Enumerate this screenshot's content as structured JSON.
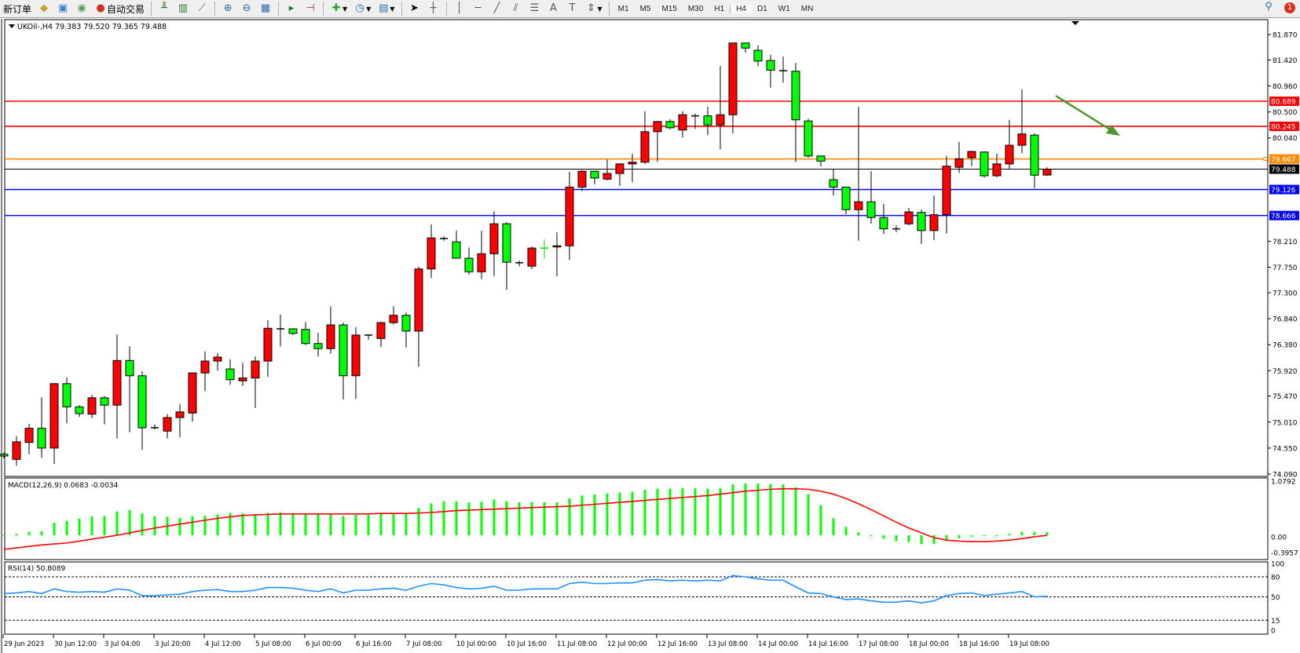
{
  "toolbar": {
    "new_order": "新订单",
    "auto_trading": "自动交易",
    "timeframes": [
      "M1",
      "M5",
      "M15",
      "M30",
      "H1",
      "H4",
      "D1",
      "W1",
      "MN"
    ],
    "active_timeframe": "H4",
    "notification_count": "1"
  },
  "chart": {
    "header": "UKOil-,H4  79.383 79.520 79.365 79.488",
    "symbol": "UKOil-",
    "timeframe": "H4",
    "up_color": "#ff0000",
    "down_color": "#00ff00",
    "price_ticks": [
      "81.870",
      "81.420",
      "80.960",
      "80.500",
      "80.040",
      "78.210",
      "77.750",
      "77.300",
      "76.840",
      "76.380",
      "75.920",
      "75.470",
      "75.010",
      "74.550",
      "74.090"
    ],
    "hlines": [
      {
        "price": 80.689,
        "label": "80.689",
        "color": "#ff0000"
      },
      {
        "price": 80.245,
        "label": "80.245",
        "color": "#ff0000"
      },
      {
        "price": 79.667,
        "label": "79.667",
        "color": "#ff8c00"
      },
      {
        "price": 79.488,
        "label": "79.488",
        "color": "#000000"
      },
      {
        "price": 79.126,
        "label": "79.126",
        "color": "#0000ff"
      },
      {
        "price": 78.666,
        "label": "78.666",
        "color": "#0000ff"
      }
    ],
    "arrow_color": "#4a9a2a",
    "time_labels": [
      {
        "i": 0,
        "t": "29 Jun 2023"
      },
      {
        "i": 4,
        "t": "30 Jun 12:00"
      },
      {
        "i": 8,
        "t": "3 Jul 04:00"
      },
      {
        "i": 12,
        "t": "3 Jul 20:00"
      },
      {
        "i": 16,
        "t": "4 Jul 12:00"
      },
      {
        "i": 20,
        "t": "5 Jul 08:00"
      },
      {
        "i": 24,
        "t": "6 Jul 00:00"
      },
      {
        "i": 28,
        "t": "6 Jul 16:00"
      },
      {
        "i": 32,
        "t": "7 Jul 08:00"
      },
      {
        "i": 36,
        "t": "10 Jul 00:00"
      },
      {
        "i": 40,
        "t": "10 Jul 16:00"
      },
      {
        "i": 44,
        "t": "11 Jul 08:00"
      },
      {
        "i": 48,
        "t": "12 Jul 00:00"
      },
      {
        "i": 52,
        "t": "12 Jul 16:00"
      },
      {
        "i": 56,
        "t": "13 Jul 08:00"
      },
      {
        "i": 60,
        "t": "14 Jul 00:00"
      },
      {
        "i": 64,
        "t": "14 Jul 16:00"
      },
      {
        "i": 68,
        "t": "17 Jul 08:00"
      },
      {
        "i": 72,
        "t": "18 Jul 00:00"
      },
      {
        "i": 76,
        "t": "18 Jul 16:00"
      },
      {
        "i": 80,
        "t": "19 Jul 08:00"
      }
    ]
  },
  "chart_data": {
    "type": "candlestick",
    "ylim": [
      74.09,
      81.87
    ],
    "ohlc": [
      [
        74.44,
        74.47,
        74.37,
        74.41
      ],
      [
        74.35,
        74.76,
        74.24,
        74.66
      ],
      [
        74.65,
        74.98,
        74.44,
        74.9
      ],
      [
        74.9,
        75.45,
        74.38,
        74.55
      ],
      [
        74.55,
        75.7,
        74.27,
        75.69
      ],
      [
        75.69,
        75.8,
        74.99,
        75.28
      ],
      [
        75.28,
        75.31,
        75.1,
        75.16
      ],
      [
        75.15,
        75.49,
        75.08,
        75.44
      ],
      [
        75.44,
        75.47,
        74.97,
        75.31
      ],
      [
        75.31,
        76.56,
        74.72,
        76.1
      ],
      [
        76.1,
        76.35,
        74.83,
        75.83
      ],
      [
        75.83,
        75.91,
        74.52,
        74.91
      ],
      [
        74.91,
        74.97,
        74.88,
        74.91
      ],
      [
        74.85,
        75.15,
        74.72,
        75.09
      ],
      [
        75.09,
        75.33,
        74.74,
        75.19
      ],
      [
        75.17,
        75.88,
        75.02,
        75.88
      ],
      [
        75.88,
        76.26,
        75.56,
        76.09
      ],
      [
        76.09,
        76.23,
        75.92,
        76.16
      ],
      [
        75.95,
        76.12,
        75.67,
        75.76
      ],
      [
        75.74,
        76.06,
        75.65,
        75.79
      ],
      [
        75.79,
        76.17,
        75.26,
        76.09
      ],
      [
        76.09,
        76.81,
        75.81,
        76.67
      ],
      [
        76.66,
        76.91,
        76.35,
        76.66
      ],
      [
        76.66,
        76.67,
        76.55,
        76.58
      ],
      [
        76.65,
        76.78,
        76.37,
        76.4
      ],
      [
        76.4,
        76.59,
        76.17,
        76.31
      ],
      [
        76.31,
        77.06,
        76.22,
        76.73
      ],
      [
        76.73,
        76.77,
        75.41,
        75.83
      ],
      [
        75.83,
        76.69,
        75.42,
        76.55
      ],
      [
        76.55,
        76.56,
        76.47,
        76.55
      ],
      [
        76.49,
        76.79,
        76.34,
        76.77
      ],
      [
        76.77,
        77.06,
        76.74,
        76.9
      ],
      [
        76.9,
        76.95,
        76.33,
        76.62
      ],
      [
        76.62,
        77.76,
        75.99,
        77.72
      ],
      [
        77.72,
        78.51,
        77.56,
        78.27
      ],
      [
        78.26,
        78.3,
        78.22,
        78.26
      ],
      [
        78.2,
        78.4,
        77.91,
        77.91
      ],
      [
        77.91,
        78.1,
        77.62,
        77.67
      ],
      [
        77.67,
        78.4,
        77.54,
        77.99
      ],
      [
        77.99,
        78.74,
        77.59,
        78.52
      ],
      [
        78.52,
        78.55,
        77.35,
        77.84
      ],
      [
        77.83,
        77.87,
        77.77,
        77.83
      ],
      [
        77.77,
        78.12,
        77.72,
        78.09
      ],
      [
        78.09,
        78.24,
        77.9,
        78.09
      ],
      [
        78.11,
        78.37,
        77.59,
        78.13
      ],
      [
        78.13,
        79.44,
        77.88,
        79.17
      ],
      [
        79.17,
        79.47,
        79.1,
        79.45
      ],
      [
        79.45,
        79.45,
        79.22,
        79.33
      ],
      [
        79.31,
        79.66,
        79.29,
        79.41
      ],
      [
        79.41,
        79.59,
        79.19,
        79.58
      ],
      [
        79.58,
        79.76,
        79.26,
        79.61
      ],
      [
        79.61,
        80.51,
        79.58,
        80.15
      ],
      [
        80.15,
        80.34,
        79.62,
        80.33
      ],
      [
        80.33,
        80.37,
        80.19,
        80.22
      ],
      [
        80.18,
        80.51,
        80.05,
        80.45
      ],
      [
        80.43,
        80.47,
        80.2,
        80.43
      ],
      [
        80.43,
        80.59,
        80.09,
        80.27
      ],
      [
        80.27,
        81.31,
        79.84,
        80.45
      ],
      [
        80.45,
        81.72,
        80.12,
        81.72
      ],
      [
        81.72,
        81.72,
        81.55,
        81.63
      ],
      [
        81.59,
        81.68,
        81.31,
        81.4
      ],
      [
        81.41,
        81.51,
        80.93,
        81.24
      ],
      [
        81.23,
        81.48,
        81.02,
        81.23
      ],
      [
        81.22,
        81.37,
        79.61,
        80.36
      ],
      [
        80.34,
        80.38,
        79.69,
        79.72
      ],
      [
        79.72,
        79.72,
        79.54,
        79.63
      ],
      [
        79.3,
        79.48,
        79.02,
        79.17
      ],
      [
        79.17,
        79.17,
        78.69,
        78.77
      ],
      [
        78.77,
        80.59,
        78.22,
        78.91
      ],
      [
        78.91,
        79.45,
        78.52,
        78.63
      ],
      [
        78.63,
        78.87,
        78.34,
        78.43
      ],
      [
        78.43,
        78.49,
        78.37,
        78.43
      ],
      [
        78.52,
        78.8,
        78.49,
        78.73
      ],
      [
        78.72,
        78.77,
        78.16,
        78.4
      ],
      [
        78.4,
        79.02,
        78.23,
        78.68
      ],
      [
        78.68,
        79.72,
        78.35,
        79.54
      ],
      [
        79.52,
        79.97,
        79.42,
        79.67
      ],
      [
        79.69,
        79.81,
        79.54,
        79.8
      ],
      [
        79.79,
        79.8,
        79.34,
        79.37
      ],
      [
        79.37,
        79.76,
        79.34,
        79.58
      ],
      [
        79.58,
        80.36,
        79.49,
        79.91
      ],
      [
        79.91,
        80.9,
        79.77,
        80.11
      ],
      [
        80.09,
        80.12,
        79.15,
        79.38
      ],
      [
        79.383,
        79.52,
        79.365,
        79.488
      ]
    ],
    "macd": {
      "label": "MACD(12,26,9) 0.0683 -0.0034",
      "ticks": [
        "1.0792",
        "0.00",
        "-0.3957"
      ],
      "ylim": [
        -0.3957,
        1.0792
      ],
      "hist_color": "#00ff00",
      "signal_color": "#ff0000",
      "main": [
        0.0,
        0.03,
        0.07,
        0.08,
        0.26,
        0.3,
        0.34,
        0.39,
        0.4,
        0.49,
        0.52,
        0.45,
        0.39,
        0.38,
        0.36,
        0.39,
        0.4,
        0.43,
        0.46,
        0.45,
        0.44,
        0.46,
        0.47,
        0.46,
        0.44,
        0.43,
        0.44,
        0.4,
        0.42,
        0.42,
        0.44,
        0.45,
        0.44,
        0.56,
        0.66,
        0.7,
        0.7,
        0.68,
        0.69,
        0.74,
        0.7,
        0.68,
        0.68,
        0.68,
        0.68,
        0.76,
        0.82,
        0.84,
        0.86,
        0.88,
        0.9,
        0.94,
        0.96,
        0.96,
        0.97,
        0.97,
        0.96,
        0.97,
        1.05,
        1.07,
        1.07,
        1.06,
        1.05,
        0.99,
        0.85,
        0.62,
        0.35,
        0.17,
        0.06,
        -0.02,
        -0.07,
        -0.12,
        -0.14,
        -0.18,
        -0.18,
        -0.1,
        -0.06,
        -0.03,
        -0.01,
        0.0,
        0.03,
        0.07,
        0.07,
        0.0683
      ],
      "signal": [
        -0.29,
        -0.26,
        -0.23,
        -0.2,
        -0.18,
        -0.16,
        -0.12,
        -0.08,
        -0.04,
        0.0,
        0.05,
        0.1,
        0.15,
        0.19,
        0.23,
        0.27,
        0.31,
        0.35,
        0.38,
        0.41,
        0.42,
        0.43,
        0.44,
        0.44,
        0.44,
        0.44,
        0.44,
        0.44,
        0.44,
        0.44,
        0.45,
        0.45,
        0.45,
        0.46,
        0.47,
        0.49,
        0.51,
        0.52,
        0.53,
        0.54,
        0.55,
        0.56,
        0.57,
        0.58,
        0.59,
        0.6,
        0.62,
        0.64,
        0.66,
        0.68,
        0.7,
        0.72,
        0.74,
        0.76,
        0.78,
        0.8,
        0.82,
        0.85,
        0.88,
        0.91,
        0.93,
        0.95,
        0.96,
        0.96,
        0.95,
        0.91,
        0.85,
        0.76,
        0.65,
        0.53,
        0.4,
        0.27,
        0.15,
        0.05,
        -0.05,
        -0.1,
        -0.12,
        -0.13,
        -0.13,
        -0.12,
        -0.1,
        -0.07,
        -0.03,
        -0.0034
      ]
    },
    "rsi": {
      "label": "RSI(14) 50.8089",
      "ticks": [
        "100",
        "80",
        "50",
        "15",
        "0"
      ],
      "levels": [
        80,
        50,
        15
      ],
      "ylim": [
        0,
        100
      ],
      "color": "#1e90ff",
      "values": [
        55,
        56,
        58,
        55,
        62,
        58,
        57,
        58,
        57,
        62,
        60,
        52,
        52,
        53,
        54,
        58,
        60,
        61,
        58,
        58,
        60,
        64,
        64,
        63,
        60,
        58,
        62,
        56,
        60,
        60,
        62,
        63,
        60,
        66,
        70,
        68,
        64,
        62,
        63,
        66,
        60,
        60,
        62,
        62,
        62,
        70,
        72,
        70,
        70,
        71,
        71,
        75,
        76,
        74,
        75,
        74,
        75,
        74,
        82,
        80,
        77,
        75,
        75,
        65,
        56,
        55,
        50,
        46,
        47,
        44,
        42,
        42,
        44,
        41,
        44,
        52,
        55,
        56,
        52,
        54,
        56,
        58,
        50,
        50.8089
      ]
    }
  }
}
